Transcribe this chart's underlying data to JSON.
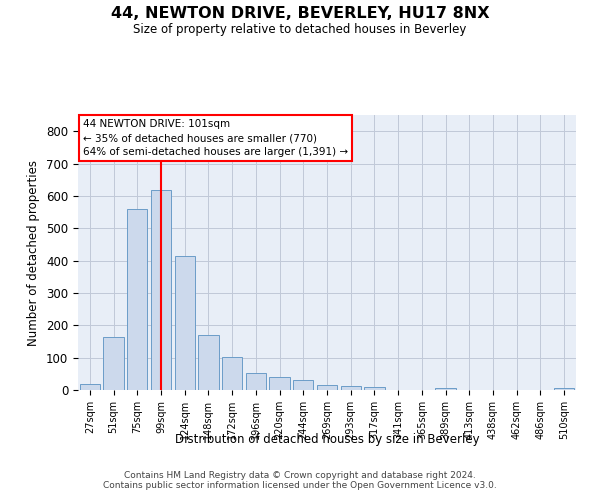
{
  "title": "44, NEWTON DRIVE, BEVERLEY, HU17 8NX",
  "subtitle": "Size of property relative to detached houses in Beverley",
  "xlabel": "Distribution of detached houses by size in Beverley",
  "ylabel": "Number of detached properties",
  "bar_color": "#ccd9ec",
  "bar_edge_color": "#6b9cc8",
  "grid_color": "#c0c8d8",
  "background_color": "#e8eef7",
  "categories": [
    "27sqm",
    "51sqm",
    "75sqm",
    "99sqm",
    "124sqm",
    "148sqm",
    "172sqm",
    "196sqm",
    "220sqm",
    "244sqm",
    "269sqm",
    "293sqm",
    "317sqm",
    "341sqm",
    "365sqm",
    "389sqm",
    "413sqm",
    "438sqm",
    "462sqm",
    "486sqm",
    "510sqm"
  ],
  "values": [
    18,
    163,
    560,
    617,
    413,
    169,
    103,
    52,
    40,
    30,
    14,
    12,
    9,
    0,
    0,
    7,
    0,
    0,
    0,
    0,
    7
  ],
  "ylim": [
    0,
    850
  ],
  "yticks": [
    0,
    100,
    200,
    300,
    400,
    500,
    600,
    700,
    800
  ],
  "property_label": "44 NEWTON DRIVE: 101sqm",
  "annotation_line1": "← 35% of detached houses are smaller (770)",
  "annotation_line2": "64% of semi-detached houses are larger (1,391) →",
  "vline_bin_index": 3,
  "footer1": "Contains HM Land Registry data © Crown copyright and database right 2024.",
  "footer2": "Contains public sector information licensed under the Open Government Licence v3.0.",
  "figsize": [
    6.0,
    5.0
  ],
  "dpi": 100
}
